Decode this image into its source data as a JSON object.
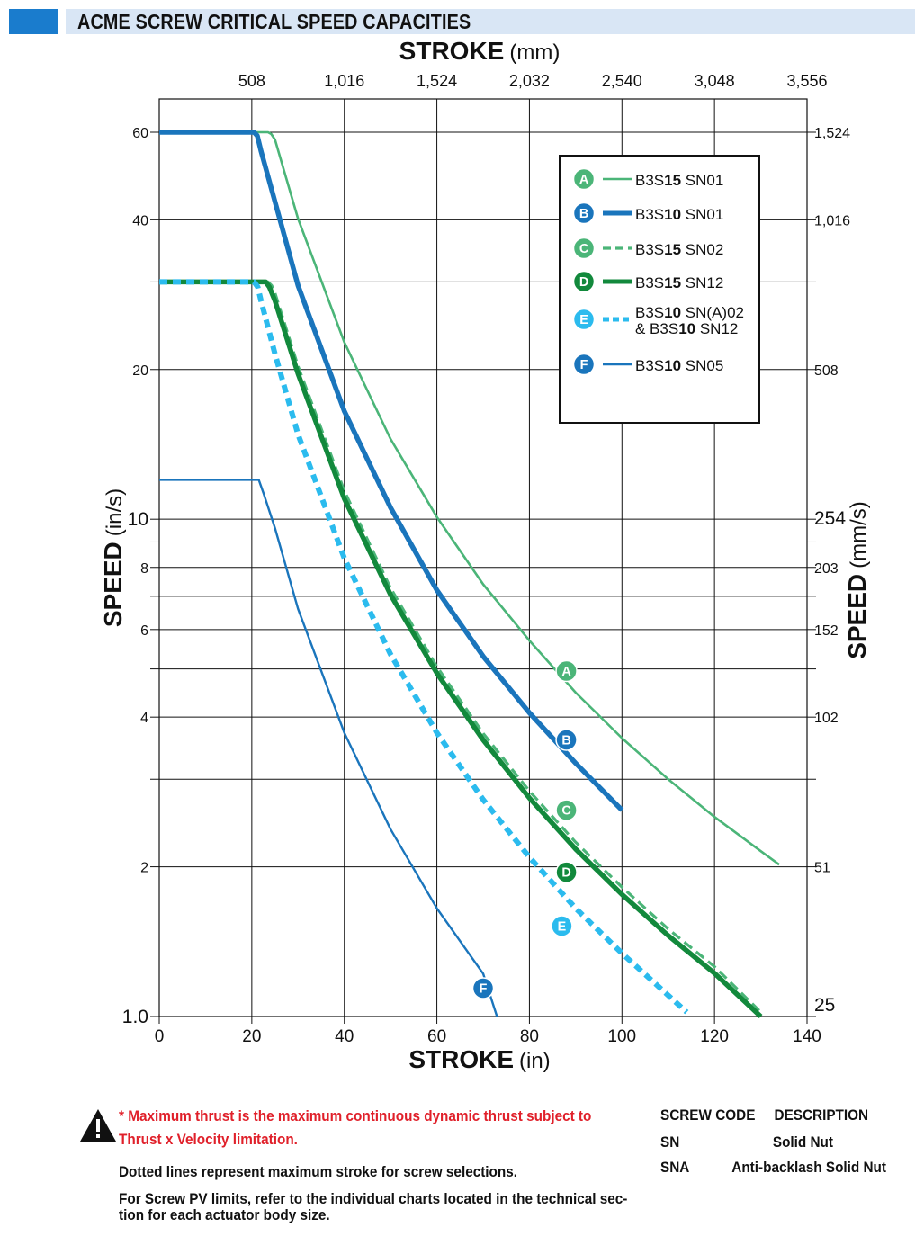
{
  "page_title": "ACME SCREW CRITICAL SPEED CAPACITIES",
  "chart_data": {
    "type": "line",
    "title": "ACME SCREW CRITICAL SPEED CAPACITIES",
    "x_scale": "linear",
    "y_scale": "log",
    "xlabel_bold": "STROKE",
    "xlabel_unit": "(in)",
    "x2label_bold": "STROKE",
    "x2label_unit": "(mm)",
    "ylabel_bold": "SPEED",
    "ylabel_unit": "(in/s)",
    "y2label_bold": "SPEED",
    "y2label_unit": "(mm/s)",
    "xlim": [
      0,
      140
    ],
    "ylim": [
      1,
      70
    ],
    "grid": true,
    "legend_position": "top-right",
    "x_ticks": [
      {
        "value": 0,
        "label": "0"
      },
      {
        "value": 20,
        "label": "20"
      },
      {
        "value": 40,
        "label": "40"
      },
      {
        "value": 60,
        "label": "60"
      },
      {
        "value": 80,
        "label": "80"
      },
      {
        "value": 100,
        "label": "100"
      },
      {
        "value": 120,
        "label": "120"
      },
      {
        "value": 140,
        "label": "140"
      }
    ],
    "x2_ticks": [
      {
        "value": 20,
        "label": "508"
      },
      {
        "value": 40,
        "label": "1,016"
      },
      {
        "value": 60,
        "label": "1,524"
      },
      {
        "value": 80,
        "label": "2,032"
      },
      {
        "value": 100,
        "label": "2,540"
      },
      {
        "value": 120,
        "label": "3,048"
      },
      {
        "value": 140,
        "label": "3,556"
      }
    ],
    "y_ticks": [
      {
        "value": 1,
        "label": "1.0"
      },
      {
        "value": 2,
        "label": "2"
      },
      {
        "value": 4,
        "label": "4"
      },
      {
        "value": 6,
        "label": "6"
      },
      {
        "value": 8,
        "label": "8"
      },
      {
        "value": 10,
        "label": "10"
      },
      {
        "value": 20,
        "label": "20"
      },
      {
        "value": 40,
        "label": "40"
      },
      {
        "value": 60,
        "label": "60"
      }
    ],
    "y2_ticks": [
      {
        "value": 1,
        "label": "25"
      },
      {
        "value": 2,
        "label": "51"
      },
      {
        "value": 4,
        "label": "102"
      },
      {
        "value": 6,
        "label": "152"
      },
      {
        "value": 8,
        "label": "203"
      },
      {
        "value": 10,
        "label": "254"
      },
      {
        "value": 20,
        "label": "508"
      },
      {
        "value": 40,
        "label": "1,016"
      },
      {
        "value": 60,
        "label": "1,524"
      }
    ],
    "y_extra_gridlines": [
      3,
      5,
      7,
      9,
      30
    ],
    "series": [
      {
        "id": "A",
        "name": "B3S15 SN01",
        "color": "#4bb578",
        "style": "solid",
        "width": 2.6,
        "x": [
          0,
          23.5,
          24.2,
          25,
          30,
          40,
          50,
          60,
          70,
          80,
          90,
          100,
          110,
          120,
          130,
          134
        ],
        "y": [
          60,
          60,
          59.5,
          58,
          40.2,
          22.7,
          14.5,
          10.1,
          7.4,
          5.7,
          4.48,
          3.63,
          3.0,
          2.52,
          2.15,
          2.02
        ],
        "marker_pos": {
          "x": 88,
          "y": 4.95
        }
      },
      {
        "id": "B",
        "name": "B3S10 SN01",
        "color": "#1a75bc",
        "style": "solid",
        "width": 5.5,
        "x": [
          0,
          20.5,
          21.2,
          22,
          25,
          30,
          40,
          50,
          60,
          70,
          80,
          90,
          100
        ],
        "y": [
          60,
          60,
          59,
          55,
          43.5,
          29.5,
          16.5,
          10.55,
          7.2,
          5.3,
          4.08,
          3.23,
          2.6
        ],
        "marker_pos": {
          "x": 88,
          "y": 3.6
        }
      },
      {
        "id": "C",
        "name": "B3S15 SN02",
        "color": "#4bb578",
        "style": "dashed",
        "width": 3.2,
        "x": [
          0,
          23.5,
          24.3,
          25,
          30,
          40,
          50,
          60,
          70,
          80,
          90,
          100,
          110,
          120,
          130
        ],
        "y": [
          30,
          30,
          29.5,
          28.5,
          20.3,
          11.4,
          7.27,
          5.05,
          3.71,
          2.84,
          2.24,
          1.82,
          1.5,
          1.26,
          1.02
        ],
        "marker_pos": {
          "x": 88,
          "y": 2.6
        }
      },
      {
        "id": "D",
        "name": "B3S15 SN12",
        "color": "#12893c",
        "style": "solid",
        "width": 5.5,
        "x": [
          0,
          23,
          23.8,
          25,
          30,
          40,
          50,
          60,
          70,
          80,
          90,
          100,
          110,
          120,
          130
        ],
        "y": [
          30,
          30,
          29.3,
          27.5,
          19.6,
          11.0,
          7.05,
          4.9,
          3.6,
          2.75,
          2.17,
          1.76,
          1.455,
          1.222,
          1.0
        ],
        "marker_pos": {
          "x": 88,
          "y": 1.95
        }
      },
      {
        "id": "E",
        "name": "B3S10 SN(A)02 & B3S10 SN12",
        "name_line1": "B3S10 SN(A)02",
        "name_line2": "& B3S10 SN12",
        "color": "#2bbbee",
        "style": "dotted",
        "width": 6,
        "x": [
          0,
          20.5,
          21.3,
          22,
          25,
          30,
          40,
          50,
          60,
          70,
          80,
          90,
          100,
          114
        ],
        "y": [
          30,
          30,
          29.3,
          27.5,
          21.5,
          14.8,
          8.35,
          5.35,
          3.72,
          2.73,
          2.09,
          1.65,
          1.34,
          1.02
        ],
        "marker_pos": {
          "x": 87,
          "y": 1.52
        }
      },
      {
        "id": "F",
        "name": "B3S10 SN05",
        "color": "#1a75bc",
        "style": "solid",
        "width": 2.4,
        "x": [
          0,
          21.5,
          22.5,
          25,
          30,
          40,
          50,
          60,
          70,
          73
        ],
        "y": [
          12,
          12,
          11.3,
          9.6,
          6.6,
          3.72,
          2.38,
          1.65,
          1.22,
          1.0
        ],
        "marker_pos": {
          "x": 70,
          "y": 1.14
        }
      }
    ]
  },
  "legend_entries": [
    {
      "id": "A",
      "prefix": "B3S",
      "bold": "15",
      "suffix": " SN01"
    },
    {
      "id": "B",
      "prefix": "B3S",
      "bold": "10",
      "suffix": " SN01"
    },
    {
      "id": "C",
      "prefix": "B3S",
      "bold": "15",
      "suffix": " SN02"
    },
    {
      "id": "D",
      "prefix": "B3S",
      "bold": "15",
      "suffix": " SN12"
    },
    {
      "id": "E",
      "prefix": "B3S",
      "bold": "10",
      "suffix": " SN(A)02",
      "prefix2": "& B3S",
      "bold2": "10",
      "suffix2": " SN12"
    },
    {
      "id": "F",
      "prefix": "B3S",
      "bold": "10",
      "suffix": " SN05"
    }
  ],
  "footer": {
    "warning_line1": "* Maximum thrust is the maximum continuous dynamic thrust subject to",
    "warning_line2": "Thrust x Velocity limitation.",
    "note1": "Dotted lines represent maximum stroke for screw selections.",
    "note2_line1": "For Screw PV limits, refer to the individual charts located in the technical sec-",
    "note2_line2": "tion for each actuator body size.",
    "code_header_code": "SCREW CODE",
    "code_header_desc": "DESCRIPTION",
    "codes": [
      {
        "code": "SN",
        "desc": "Solid Nut"
      },
      {
        "code": "SNA",
        "desc": "Anti-backlash Solid Nut"
      }
    ]
  }
}
